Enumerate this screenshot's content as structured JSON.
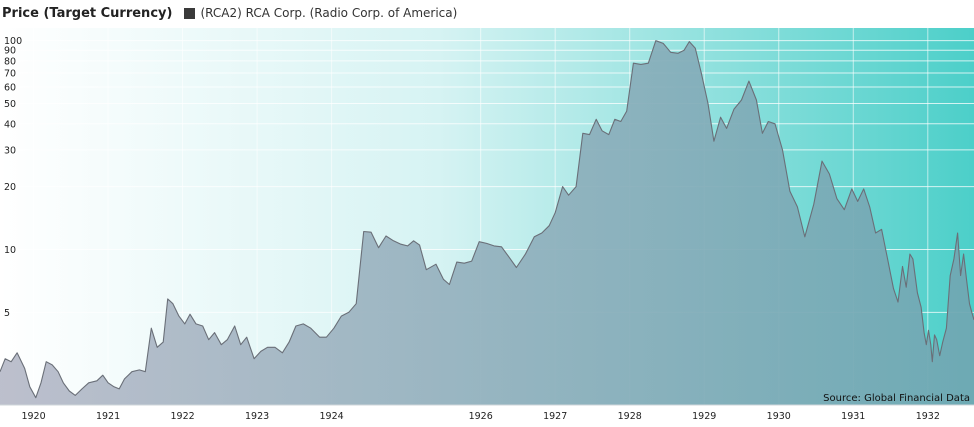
{
  "header": {
    "title": "Price (Target Currency)",
    "legend_label": "(RCA2) RCA Corp. (Radio Corp. of America)"
  },
  "source": "Source: Global Financial Data",
  "colors": {
    "line": "#6a6f78",
    "legend_swatch": "#3a3a3a",
    "bg_left": "#ffffff",
    "bg_right": "#4ccfc9",
    "fill": "#8a9aa8"
  },
  "chart_data": {
    "type": "area",
    "title": "Price (Target Currency)",
    "yscale": "log",
    "ylim": [
      1.8,
      115
    ],
    "xlim": [
      1919.55,
      1932.62
    ],
    "grid": true,
    "legend": "top",
    "y_ticks": [
      100,
      90,
      80,
      70,
      60,
      50,
      40,
      30,
      20,
      10,
      5
    ],
    "x_ticks": [
      {
        "label": "1920",
        "value": 1920.0
      },
      {
        "label": "1921",
        "value": 1921.0
      },
      {
        "label": "1922",
        "value": 1922.0
      },
      {
        "label": "1923",
        "value": 1923.0
      },
      {
        "label": "1924",
        "value": 1924.0
      },
      {
        "label": "1926",
        "value": 1926.0
      },
      {
        "label": "1927",
        "value": 1927.0
      },
      {
        "label": "1928",
        "value": 1928.0
      },
      {
        "label": "1929",
        "value": 1929.0
      },
      {
        "label": "1930",
        "value": 1930.0
      },
      {
        "label": "1931",
        "value": 1931.0
      },
      {
        "label": "1932",
        "value": 1932.0
      }
    ],
    "series": [
      {
        "name": "(RCA2) RCA Corp. (Radio Corp. of America)",
        "points": [
          [
            1919.55,
            2.6
          ],
          [
            1919.62,
            3.0
          ],
          [
            1919.7,
            2.9
          ],
          [
            1919.78,
            3.2
          ],
          [
            1919.88,
            2.7
          ],
          [
            1919.95,
            2.2
          ],
          [
            1920.03,
            1.95
          ],
          [
            1920.1,
            2.3
          ],
          [
            1920.17,
            2.9
          ],
          [
            1920.25,
            2.8
          ],
          [
            1920.33,
            2.6
          ],
          [
            1920.4,
            2.3
          ],
          [
            1920.48,
            2.1
          ],
          [
            1920.56,
            2.0
          ],
          [
            1920.65,
            2.15
          ],
          [
            1920.74,
            2.3
          ],
          [
            1920.85,
            2.35
          ],
          [
            1920.93,
            2.5
          ],
          [
            1921.0,
            2.3
          ],
          [
            1921.08,
            2.2
          ],
          [
            1921.15,
            2.15
          ],
          [
            1921.22,
            2.4
          ],
          [
            1921.32,
            2.6
          ],
          [
            1921.42,
            2.65
          ],
          [
            1921.5,
            2.6
          ],
          [
            1921.58,
            4.2
          ],
          [
            1921.66,
            3.4
          ],
          [
            1921.74,
            3.6
          ],
          [
            1921.8,
            5.8
          ],
          [
            1921.87,
            5.5
          ],
          [
            1921.95,
            4.8
          ],
          [
            1922.03,
            4.4
          ],
          [
            1922.1,
            4.9
          ],
          [
            1922.18,
            4.4
          ],
          [
            1922.27,
            4.3
          ],
          [
            1922.35,
            3.7
          ],
          [
            1922.43,
            4.0
          ],
          [
            1922.52,
            3.5
          ],
          [
            1922.6,
            3.7
          ],
          [
            1922.7,
            4.3
          ],
          [
            1922.78,
            3.5
          ],
          [
            1922.86,
            3.8
          ],
          [
            1922.96,
            3.0
          ],
          [
            1923.05,
            3.25
          ],
          [
            1923.14,
            3.4
          ],
          [
            1923.24,
            3.4
          ],
          [
            1923.34,
            3.2
          ],
          [
            1923.43,
            3.6
          ],
          [
            1923.52,
            4.3
          ],
          [
            1923.62,
            4.4
          ],
          [
            1923.72,
            4.2
          ],
          [
            1923.84,
            3.8
          ],
          [
            1923.93,
            3.8
          ],
          [
            1924.03,
            4.2
          ],
          [
            1924.13,
            4.8
          ],
          [
            1924.23,
            5.0
          ],
          [
            1924.33,
            5.5
          ],
          [
            1924.43,
            12.2
          ],
          [
            1924.53,
            12.1
          ],
          [
            1924.63,
            10.2
          ],
          [
            1924.73,
            11.6
          ],
          [
            1924.83,
            11.0
          ],
          [
            1924.93,
            10.6
          ],
          [
            1925.02,
            10.4
          ],
          [
            1925.1,
            11.0
          ],
          [
            1925.18,
            10.5
          ],
          [
            1925.27,
            8.0
          ],
          [
            1925.4,
            8.5
          ],
          [
            1925.5,
            7.2
          ],
          [
            1925.58,
            6.8
          ],
          [
            1925.68,
            8.7
          ],
          [
            1925.78,
            8.6
          ],
          [
            1925.88,
            8.8
          ],
          [
            1925.98,
            10.9
          ],
          [
            1926.08,
            10.7
          ],
          [
            1926.18,
            10.4
          ],
          [
            1926.28,
            10.3
          ],
          [
            1926.38,
            9.2
          ],
          [
            1926.48,
            8.2
          ],
          [
            1926.6,
            9.5
          ],
          [
            1926.72,
            11.5
          ],
          [
            1926.82,
            12.0
          ],
          [
            1926.92,
            13.0
          ],
          [
            1927.0,
            15.0
          ],
          [
            1927.1,
            20.0
          ],
          [
            1927.18,
            18.2
          ],
          [
            1927.28,
            20.0
          ],
          [
            1927.37,
            36.0
          ],
          [
            1927.46,
            35.5
          ],
          [
            1927.55,
            42.0
          ],
          [
            1927.63,
            37.0
          ],
          [
            1927.72,
            35.5
          ],
          [
            1927.8,
            42.0
          ],
          [
            1927.88,
            41.0
          ],
          [
            1927.96,
            46.0
          ],
          [
            1928.05,
            78.0
          ],
          [
            1928.15,
            77.0
          ],
          [
            1928.25,
            78.0
          ],
          [
            1928.35,
            100.0
          ],
          [
            1928.45,
            97.0
          ],
          [
            1928.55,
            88.0
          ],
          [
            1928.65,
            87.0
          ],
          [
            1928.73,
            90.0
          ],
          [
            1928.8,
            99.0
          ],
          [
            1928.88,
            92.0
          ],
          [
            1928.96,
            70.0
          ],
          [
            1929.05,
            50.0
          ],
          [
            1929.13,
            33.0
          ],
          [
            1929.22,
            43.0
          ],
          [
            1929.3,
            38.0
          ],
          [
            1929.4,
            47.0
          ],
          [
            1929.5,
            52.0
          ],
          [
            1929.6,
            64.0
          ],
          [
            1929.7,
            52.0
          ],
          [
            1929.78,
            36.0
          ],
          [
            1929.86,
            41.0
          ],
          [
            1929.95,
            40.0
          ],
          [
            1930.05,
            30.0
          ],
          [
            1930.15,
            19.0
          ],
          [
            1930.25,
            16.0
          ],
          [
            1930.35,
            11.5
          ],
          [
            1930.47,
            16.5
          ],
          [
            1930.58,
            26.5
          ],
          [
            1930.68,
            23.0
          ],
          [
            1930.78,
            17.5
          ],
          [
            1930.88,
            15.5
          ],
          [
            1930.98,
            19.5
          ],
          [
            1931.06,
            17.0
          ],
          [
            1931.14,
            19.5
          ],
          [
            1931.22,
            16.0
          ],
          [
            1931.3,
            12.0
          ],
          [
            1931.38,
            12.5
          ],
          [
            1931.46,
            9.0
          ],
          [
            1931.54,
            6.5
          ],
          [
            1931.6,
            5.6
          ],
          [
            1931.66,
            8.3
          ],
          [
            1931.71,
            6.6
          ],
          [
            1931.76,
            9.5
          ],
          [
            1931.8,
            9.0
          ],
          [
            1931.86,
            6.2
          ],
          [
            1931.91,
            5.3
          ],
          [
            1931.95,
            4.0
          ],
          [
            1931.98,
            3.5
          ],
          [
            1932.01,
            4.1
          ],
          [
            1932.04,
            3.5
          ],
          [
            1932.06,
            2.9
          ],
          [
            1932.09,
            3.9
          ],
          [
            1932.12,
            3.7
          ],
          [
            1932.16,
            3.1
          ],
          [
            1932.2,
            3.6
          ],
          [
            1932.25,
            4.2
          ],
          [
            1932.3,
            7.5
          ],
          [
            1932.35,
            9.0
          ],
          [
            1932.4,
            12.0
          ],
          [
            1932.44,
            7.5
          ],
          [
            1932.48,
            9.5
          ],
          [
            1932.52,
            7.2
          ],
          [
            1932.56,
            5.5
          ],
          [
            1932.59,
            5.0
          ],
          [
            1932.62,
            4.6
          ]
        ]
      }
    ]
  }
}
